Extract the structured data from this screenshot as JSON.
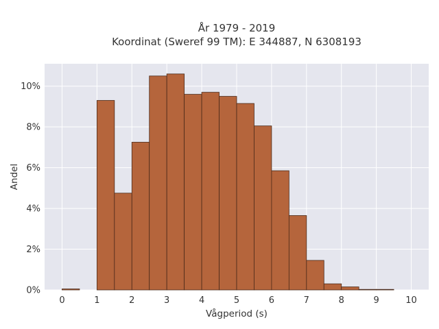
{
  "chart_data": {
    "type": "bar",
    "title_lines": [
      "År 1979 - 2019",
      "Koordinat (Sweref 99 TM): E 344887, N 6308193"
    ],
    "xlabel": "Vågperiod (s)",
    "ylabel": "Andel",
    "x_ticks": [
      "0",
      "1",
      "2",
      "3",
      "4",
      "5",
      "6",
      "7",
      "8",
      "9",
      "10"
    ],
    "y_ticks": [
      "0%",
      "2%",
      "4%",
      "6%",
      "8%",
      "10%"
    ],
    "xlim": [
      -0.5,
      10.5
    ],
    "ylim": [
      0,
      11.1
    ],
    "bin_width": 0.5,
    "bins": [
      {
        "x0": 0.0,
        "value": 0.05
      },
      {
        "x0": 1.0,
        "value": 9.3
      },
      {
        "x0": 1.5,
        "value": 4.75
      },
      {
        "x0": 2.0,
        "value": 7.25
      },
      {
        "x0": 2.5,
        "value": 10.5
      },
      {
        "x0": 3.0,
        "value": 10.6
      },
      {
        "x0": 3.5,
        "value": 9.6
      },
      {
        "x0": 4.0,
        "value": 9.7
      },
      {
        "x0": 4.5,
        "value": 9.5
      },
      {
        "x0": 5.0,
        "value": 9.15
      },
      {
        "x0": 5.5,
        "value": 8.05
      },
      {
        "x0": 6.0,
        "value": 5.85
      },
      {
        "x0": 6.5,
        "value": 3.65
      },
      {
        "x0": 7.0,
        "value": 1.45
      },
      {
        "x0": 7.5,
        "value": 0.3
      },
      {
        "x0": 8.0,
        "value": 0.15
      },
      {
        "x0": 8.5,
        "value": 0.02
      },
      {
        "x0": 9.0,
        "value": 0.02
      }
    ],
    "grid": true,
    "colors": {
      "bar_fill": "#b5653c",
      "bar_edge": "#4a2a1a",
      "plot_background": "#e5e6ee",
      "grid": "#ffffff",
      "text": "#333333"
    }
  }
}
